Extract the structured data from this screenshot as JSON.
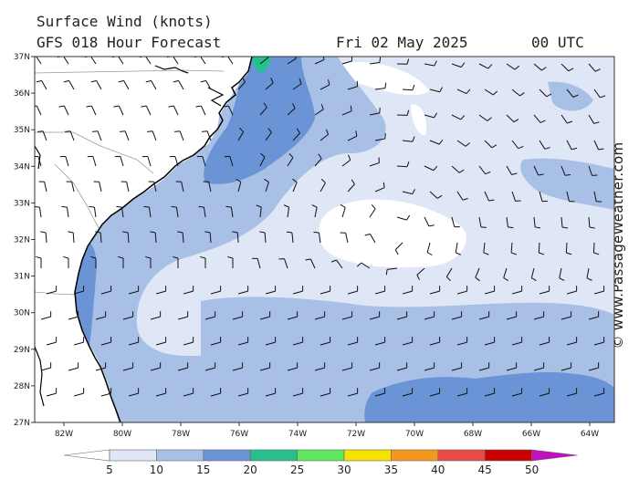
{
  "header": {
    "title": "Surface Wind (knots)",
    "model": "GFS 018 Hour Forecast",
    "date": "Fri 02 May 2025",
    "time": "00 UTC"
  },
  "credit": "© www.PassageWeather.com",
  "map": {
    "lat_labels": [
      "37N",
      "36N",
      "35N",
      "34N",
      "33N",
      "32N",
      "31N",
      "30N",
      "29N",
      "28N",
      "27N"
    ],
    "lon_labels": [
      "82W",
      "80W",
      "78W",
      "76W",
      "74W",
      "72W",
      "70W",
      "68W",
      "66W",
      "64W"
    ]
  },
  "legend": {
    "ticks": [
      "5",
      "10",
      "15",
      "20",
      "25",
      "30",
      "35",
      "40",
      "45",
      "50"
    ],
    "colors": [
      "#ffffff",
      "#dfe6f6",
      "#a9c0e6",
      "#6b94d6",
      "#28bf8f",
      "#5fe85f",
      "#f4e200",
      "#f5961e",
      "#e84a4a",
      "#c80000",
      "#c010c0"
    ]
  },
  "colors": {
    "land": "#ffffff",
    "coast": "#000000",
    "border": "#9a9a9a",
    "band5_10": "#dfe6f6",
    "band10_15": "#a9c0e6",
    "band15_20": "#6b94d6",
    "band20_25": "#28bf8f"
  }
}
